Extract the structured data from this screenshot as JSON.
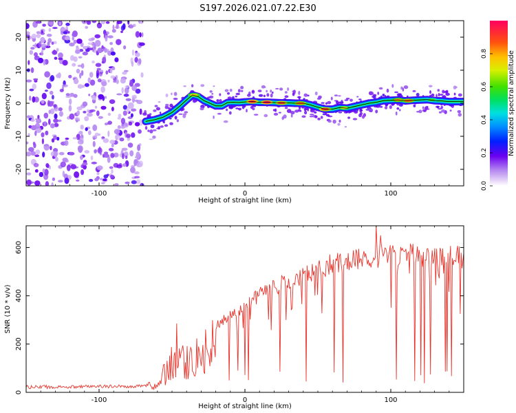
{
  "title": "S197.2026.021.07.22.E30",
  "colors": {
    "frame": "#000000",
    "snr_line": "#e8332a",
    "ridge": "#000000"
  },
  "chart_data": [
    {
      "type": "heatmap",
      "name": "spectrogram",
      "xlabel": "Height of straight line (km)",
      "ylabel": "Frequency (Hz)",
      "xlim": [
        -150,
        150
      ],
      "ylim": [
        -25,
        25
      ],
      "x_ticks": [
        -100,
        0,
        100
      ],
      "x_tick_labels": [
        "-100",
        "0",
        "100"
      ],
      "y_ticks": [
        -20,
        -10,
        0,
        10,
        20
      ],
      "y_tick_labels": [
        "-20",
        "-10",
        "0",
        "10",
        "20"
      ],
      "noise_region": [
        -150,
        -70
      ],
      "ridge": {
        "x": [
          -68,
          -62,
          -56,
          -50,
          -45,
          -40,
          -36,
          -32,
          -28,
          -24,
          -20,
          -16,
          -12,
          -8,
          -4,
          0,
          5,
          10,
          15,
          20,
          25,
          30,
          35,
          40,
          45,
          50,
          55,
          60,
          65,
          70,
          75,
          80,
          85,
          90,
          95,
          100,
          105,
          110,
          115,
          120,
          125,
          130,
          135,
          140,
          145,
          150
        ],
        "y": [
          -5.5,
          -5,
          -4.2,
          -2.8,
          -1,
          1,
          2.5,
          2,
          0.8,
          0,
          -0.8,
          -0.8,
          0.2,
          0.3,
          0.2,
          0.4,
          0.5,
          0.3,
          0.3,
          0.2,
          0.1,
          0.1,
          0,
          0,
          -0.5,
          -1.2,
          -1.8,
          -1.8,
          -1.3,
          -1.5,
          -1,
          -0.5,
          0,
          0.3,
          0.8,
          0.9,
          1,
          0.7,
          0.9,
          1,
          1.1,
          0.8,
          0.7,
          0.5,
          0.5,
          0.5
        ]
      },
      "ridge_peaks": [
        {
          "x": 5,
          "y": 0.5,
          "amp": 0.95
        },
        {
          "x": 15,
          "y": 0.3,
          "amp": 1.0
        },
        {
          "x": 25,
          "y": 0.1,
          "amp": 0.9
        },
        {
          "x": 38,
          "y": 0.0,
          "amp": 0.85
        },
        {
          "x": 55,
          "y": -1.8,
          "amp": 0.9
        },
        {
          "x": 68,
          "y": -1.4,
          "amp": 0.7
        },
        {
          "x": 105,
          "y": 1.0,
          "amp": 0.8
        },
        {
          "x": 112,
          "y": 0.8,
          "amp": 0.85
        },
        {
          "x": 128,
          "y": 1.0,
          "amp": 0.6
        },
        {
          "x": -35,
          "y": 2.5,
          "amp": 0.75
        }
      ],
      "colorbar": {
        "label": "Normalized spectral amplitude",
        "range": [
          0,
          1
        ],
        "ticks": [
          0.0,
          0.2,
          0.4,
          0.6,
          0.8
        ],
        "tick_labels": [
          "0.0",
          "0.2",
          "0.4",
          "0.6",
          "0.8"
        ]
      }
    },
    {
      "type": "line",
      "name": "snr",
      "xlabel": "Height of straight line (km)",
      "ylabel": "SNR (10 * v/v)",
      "xlim": [
        -150,
        150
      ],
      "ylim": [
        0,
        690
      ],
      "x_ticks": [
        -100,
        0,
        100
      ],
      "x_tick_labels": [
        "-100",
        "0",
        "100"
      ],
      "y_ticks": [
        0,
        200,
        400,
        600
      ],
      "y_tick_labels": [
        "0",
        "200",
        "400",
        "600"
      ],
      "envelope": {
        "x": [
          -150,
          -70,
          -60,
          -55,
          -50,
          -45,
          -40,
          -35,
          -30,
          -20,
          -10,
          0,
          10,
          20,
          30,
          40,
          50,
          60,
          70,
          80,
          90,
          100,
          110,
          120,
          130,
          140,
          150
        ],
        "y": [
          22,
          25,
          50,
          110,
          170,
          180,
          170,
          180,
          220,
          280,
          330,
          380,
          420,
          450,
          480,
          510,
          530,
          555,
          560,
          575,
          585,
          590,
          595,
          590,
          590,
          590,
          580
        ]
      },
      "spikes": [
        {
          "x": -47,
          "y": 285
        },
        {
          "x": 90,
          "y": 690
        },
        {
          "x": 93,
          "y": 650
        }
      ]
    }
  ]
}
